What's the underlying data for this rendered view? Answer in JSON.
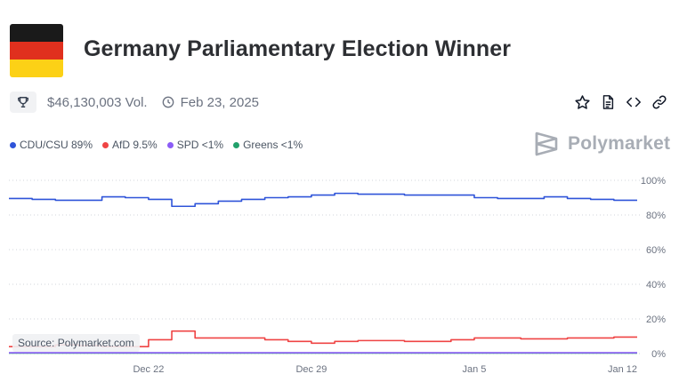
{
  "header": {
    "title": "Germany Parliamentary Election Winner",
    "flag_colors": [
      "#1a1a1a",
      "#e0301e",
      "#fcd116"
    ]
  },
  "meta": {
    "volume": "$46,130,003 Vol.",
    "end_date": "Feb 23, 2025",
    "trophy_icon": "trophy-icon",
    "clock_icon": "clock-icon"
  },
  "actions": {
    "icons": [
      "star-icon",
      "document-icon",
      "code-icon",
      "link-icon"
    ]
  },
  "legend": [
    {
      "label": "CDU/CSU 89%",
      "color": "#2f54d9"
    },
    {
      "label": "AfD 9.5%",
      "color": "#ef4444"
    },
    {
      "label": "SPD <1%",
      "color": "#8b5cf6"
    },
    {
      "label": "Greens <1%",
      "color": "#22a06b"
    }
  ],
  "brand": {
    "name": "Polymarket"
  },
  "source": "Source: Polymarket.com",
  "chart_data": {
    "type": "line",
    "x": [
      "Dec 16",
      "Dec 17",
      "Dec 18",
      "Dec 19",
      "Dec 20",
      "Dec 21",
      "Dec 22",
      "Dec 23",
      "Dec 24",
      "Dec 25",
      "Dec 26",
      "Dec 27",
      "Dec 28",
      "Dec 29",
      "Dec 30",
      "Dec 31",
      "Jan 1",
      "Jan 2",
      "Jan 3",
      "Jan 4",
      "Jan 5",
      "Jan 6",
      "Jan 7",
      "Jan 8",
      "Jan 9",
      "Jan 10",
      "Jan 11",
      "Jan 12"
    ],
    "xticks": [
      "Dec 22",
      "Dec 29",
      "Jan 5",
      "Jan 12"
    ],
    "yticks": [
      "0%",
      "20%",
      "40%",
      "60%",
      "80%",
      "100%"
    ],
    "ylim": [
      0,
      100
    ],
    "series": [
      {
        "name": "CDU/CSU",
        "color": "#2f54d9",
        "values": [
          89.5,
          89,
          88.5,
          88.5,
          90.5,
          90,
          89,
          85,
          86.5,
          88,
          89,
          90,
          90.5,
          91.5,
          92.5,
          92,
          92,
          91.5,
          91.5,
          91.5,
          90,
          89.5,
          89.5,
          90.5,
          89.5,
          89,
          88.5,
          88.5
        ]
      },
      {
        "name": "AfD",
        "color": "#ef4444",
        "values": [
          4,
          4,
          5,
          4.5,
          4,
          4,
          8,
          13,
          9,
          9,
          9,
          8,
          7,
          6,
          7,
          7.5,
          7.5,
          7,
          7,
          8,
          9,
          9,
          8.5,
          8.5,
          9,
          9,
          9.5,
          9.5
        ]
      },
      {
        "name": "SPD",
        "color": "#8b5cf6",
        "values": [
          0.5,
          0.5,
          0.5,
          0.5,
          0.5,
          0.5,
          0.5,
          0.5,
          0.5,
          0.5,
          0.5,
          0.5,
          0.5,
          0.5,
          0.5,
          0.5,
          0.5,
          0.5,
          0.5,
          0.5,
          0.5,
          0.5,
          0.5,
          0.5,
          0.5,
          0.5,
          0.5,
          0.5
        ]
      },
      {
        "name": "Greens",
        "color": "#22a06b",
        "values": [
          0.3,
          0.3,
          0.3,
          0.3,
          0.3,
          0.3,
          0.3,
          0.3,
          0.3,
          0.3,
          0.3,
          0.3,
          0.3,
          0.3,
          0.3,
          0.3,
          0.3,
          0.3,
          0.3,
          0.3,
          0.3,
          0.3,
          0.3,
          0.3,
          0.3,
          0.3,
          0.3,
          0.3
        ]
      }
    ],
    "grid": true,
    "legend": "top-left"
  }
}
